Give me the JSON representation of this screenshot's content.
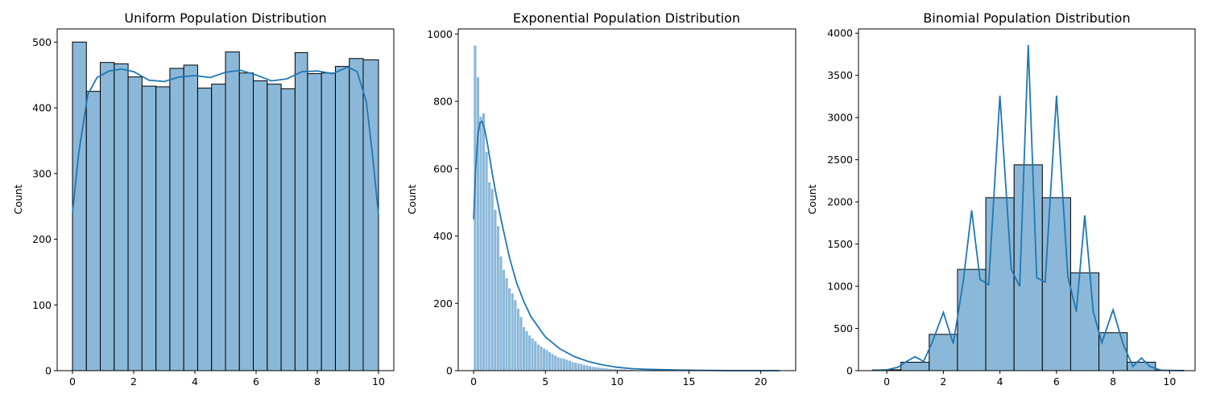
{
  "colors": {
    "bar_fill": "#8bb8d9",
    "kde_line": "#1f77b4"
  },
  "chart_data": [
    {
      "type": "bar",
      "title": "Uniform Population Distribution",
      "xlabel": "",
      "ylabel": "Count",
      "xlim": [
        -0.5,
        10.5
      ],
      "ylim": [
        0,
        520
      ],
      "xticks": [
        0,
        2,
        4,
        6,
        8,
        10
      ],
      "yticks": [
        0,
        100,
        200,
        300,
        400,
        500
      ],
      "bin_edges": [
        0,
        0.4545,
        0.9091,
        1.3636,
        1.8182,
        2.2727,
        2.7273,
        3.1818,
        3.6364,
        4.0909,
        4.5455,
        5.0,
        5.4545,
        5.9091,
        6.3636,
        6.8182,
        7.2727,
        7.6818,
        8.1364,
        8.5909,
        9.0455,
        9.5,
        10.0
      ],
      "values": [
        500,
        425,
        469,
        467,
        447,
        433,
        432,
        460,
        465,
        430,
        436,
        485,
        453,
        441,
        436,
        429,
        484,
        452,
        453,
        463,
        475,
        473
      ],
      "kde": {
        "x": [
          0,
          0.2,
          0.5,
          0.8,
          1.2,
          1.6,
          2.0,
          2.5,
          3.0,
          3.5,
          4.0,
          4.5,
          5.0,
          5.5,
          6.0,
          6.5,
          7.0,
          7.5,
          8.0,
          8.5,
          9.0,
          9.3,
          9.6,
          9.8,
          10.0
        ],
        "y": [
          240,
          330,
          420,
          446,
          456,
          459,
          455,
          442,
          440,
          447,
          449,
          446,
          454,
          457,
          450,
          441,
          444,
          455,
          456,
          452,
          462,
          455,
          410,
          330,
          237
        ]
      }
    },
    {
      "type": "bar",
      "title": "Exponential Population Distribution",
      "xlabel": "",
      "ylabel": "Count",
      "xlim": [
        -1.07,
        22.43
      ],
      "ylim": [
        0,
        1015
      ],
      "xticks": [
        0,
        5,
        10,
        15,
        20
      ],
      "yticks": [
        0,
        200,
        400,
        600,
        800,
        1000
      ],
      "bin_edges_start": 0,
      "bin_width": 0.2,
      "values": [
        966,
        872,
        755,
        765,
        650,
        560,
        540,
        478,
        430,
        340,
        300,
        275,
        245,
        230,
        210,
        185,
        160,
        130,
        118,
        105,
        96,
        88,
        78,
        72,
        66,
        62,
        55,
        50,
        45,
        40,
        38,
        36,
        33,
        30,
        26,
        24,
        22,
        20,
        18,
        16,
        14,
        12,
        11,
        10,
        9,
        8,
        7,
        6,
        5,
        5,
        4,
        4,
        4,
        3,
        3,
        3,
        2,
        2,
        2,
        2,
        1,
        1,
        1,
        1,
        1,
        1,
        1,
        1,
        1,
        1,
        0,
        0,
        0,
        0,
        0,
        0,
        0,
        0,
        0,
        0,
        0,
        0,
        0,
        0,
        0,
        0,
        0,
        0,
        0,
        0,
        0,
        0,
        0,
        0,
        0,
        0,
        0,
        0,
        0,
        0,
        0,
        0,
        0,
        0,
        0,
        1
      ],
      "kde": {
        "x": [
          0,
          0.15,
          0.3,
          0.45,
          0.6,
          0.8,
          1.0,
          1.3,
          1.6,
          2.0,
          2.5,
          3.0,
          3.5,
          4.0,
          5.0,
          6.0,
          7.0,
          8.0,
          9.0,
          10.0,
          11.0,
          12.0,
          14.0,
          16.0,
          18.0,
          21.3
        ],
        "y": [
          450,
          605,
          700,
          738,
          740,
          712,
          665,
          585,
          515,
          432,
          335,
          260,
          205,
          160,
          100,
          65,
          42,
          27,
          17,
          10,
          6,
          4,
          2,
          1,
          0,
          0
        ]
      }
    },
    {
      "type": "bar",
      "title": "Binomial Population Distribution",
      "xlabel": "",
      "ylabel": "Count",
      "xlim": [
        -1.0,
        10.9
      ],
      "ylim": [
        0,
        4050
      ],
      "xticks": [
        0,
        2,
        4,
        6,
        8,
        10
      ],
      "yticks": [
        0,
        500,
        1000,
        1500,
        2000,
        2500,
        3000,
        3500,
        4000
      ],
      "bin_edges": [
        -0.5,
        0.5,
        1.5,
        2.5,
        3.5,
        4.5,
        5.5,
        6.5,
        7.5,
        8.5,
        9.5,
        10.5
      ],
      "values": [
        10,
        100,
        430,
        1200,
        2050,
        2440,
        2050,
        1160,
        450,
        100,
        5
      ],
      "kde": {
        "x": [
          -0.5,
          0,
          0.4,
          0.7,
          1,
          1.3,
          1.6,
          2,
          2.35,
          2.7,
          3,
          3.3,
          3.6,
          4,
          4.4,
          4.7,
          5,
          5.3,
          5.6,
          6,
          6.4,
          6.7,
          7,
          7.3,
          7.6,
          8,
          8.35,
          8.7,
          9,
          9.3,
          9.7,
          10.5
        ],
        "y": [
          5,
          10,
          40,
          110,
          165,
          110,
          330,
          690,
          320,
          1050,
          1900,
          1080,
          1020,
          3260,
          1200,
          1000,
          3860,
          1100,
          1050,
          3260,
          1120,
          700,
          1840,
          700,
          330,
          720,
          320,
          50,
          150,
          50,
          5,
          0
        ]
      }
    }
  ]
}
